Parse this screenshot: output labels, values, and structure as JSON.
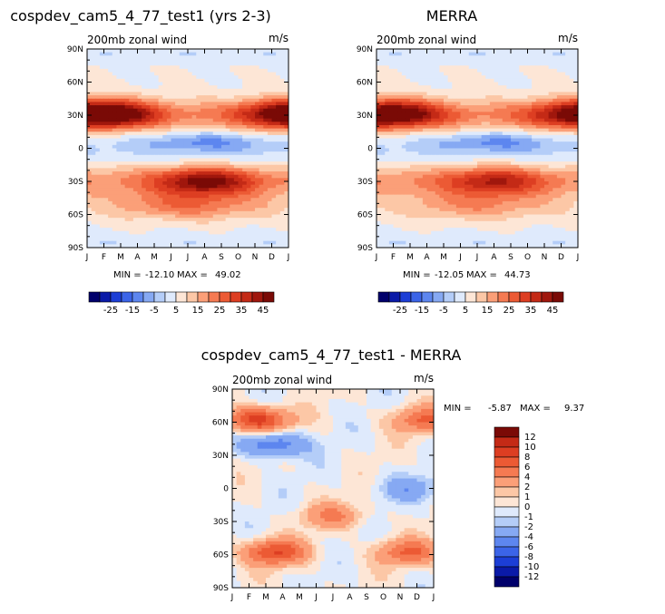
{
  "chart_data": [
    {
      "id": "model",
      "type": "contour",
      "title": "cospdev_cam5_4_77_test1 (yrs 2-3)",
      "left_subtitle": "200mb zonal wind",
      "units": "m/s",
      "x_ticks": [
        "J",
        "F",
        "M",
        "A",
        "M",
        "J",
        "J",
        "A",
        "S",
        "O",
        "N",
        "D",
        "J"
      ],
      "y_ticks": [
        "90N",
        "60N",
        "30N",
        "0",
        "30S",
        "60S",
        "90S"
      ],
      "ylim": [
        -90,
        90
      ],
      "min_label": "MIN =",
      "min": "-12.10",
      "max_label": "MAX =",
      "max": "49.02",
      "colorbar": {
        "orientation": "horizontal",
        "labels": [
          "-25",
          "-15",
          "-5",
          "5",
          "15",
          "25",
          "35",
          "45"
        ],
        "levels": [
          -35,
          -30,
          -25,
          -20,
          -15,
          -10,
          -5,
          0,
          5,
          10,
          15,
          20,
          25,
          30,
          35,
          40,
          45,
          50
        ],
        "colors": [
          "#00006b",
          "#0a1aa8",
          "#1c3ed6",
          "#3b64e8",
          "#5d86ef",
          "#86a9f3",
          "#b4cdf8",
          "#dfeafc",
          "#fde6d6",
          "#fcc7a6",
          "#fb9f78",
          "#f57a52",
          "#ec5a34",
          "#dd3e22",
          "#c42a16",
          "#a0170d",
          "#7a0a06"
        ]
      },
      "features": [
        {
          "kind": "jet",
          "month": 1.5,
          "lat": 31,
          "peak": 49
        },
        {
          "kind": "jet",
          "month": 11.5,
          "lat": 31,
          "peak": 40
        },
        {
          "kind": "jet",
          "month": 7.0,
          "lat": -30,
          "peak": 48
        },
        {
          "kind": "trough",
          "month": 7.0,
          "lat": 6,
          "peak": -12
        },
        {
          "kind": "polar",
          "month": 6.0,
          "lat": -52,
          "peak": 32
        }
      ]
    },
    {
      "id": "obs",
      "type": "contour",
      "title": "MERRA",
      "left_subtitle": "200mb zonal wind",
      "units": "m/s",
      "x_ticks": [
        "J",
        "F",
        "M",
        "A",
        "M",
        "J",
        "J",
        "A",
        "S",
        "O",
        "N",
        "D",
        "J"
      ],
      "y_ticks": [
        "90N",
        "60N",
        "30N",
        "0",
        "30S",
        "60S",
        "90S"
      ],
      "ylim": [
        -90,
        90
      ],
      "min_label": "MIN =",
      "min": "-12.05",
      "max_label": "MAX =",
      "max": "44.73",
      "colorbar": {
        "orientation": "horizontal",
        "labels": [
          "-25",
          "-15",
          "-5",
          "5",
          "15",
          "25",
          "35",
          "45"
        ],
        "levels": [
          -35,
          -30,
          -25,
          -20,
          -15,
          -10,
          -5,
          0,
          5,
          10,
          15,
          20,
          25,
          30,
          35,
          40,
          45,
          50
        ],
        "colors": [
          "#00006b",
          "#0a1aa8",
          "#1c3ed6",
          "#3b64e8",
          "#5d86ef",
          "#86a9f3",
          "#b4cdf8",
          "#dfeafc",
          "#fde6d6",
          "#fcc7a6",
          "#fb9f78",
          "#f57a52",
          "#ec5a34",
          "#dd3e22",
          "#c42a16",
          "#a0170d",
          "#7a0a06"
        ]
      },
      "features": [
        {
          "kind": "jet",
          "month": 1.5,
          "lat": 31,
          "peak": 44
        },
        {
          "kind": "jet",
          "month": 11.5,
          "lat": 31,
          "peak": 38
        },
        {
          "kind": "jet",
          "month": 7.0,
          "lat": -30,
          "peak": 40
        },
        {
          "kind": "trough",
          "month": 7.0,
          "lat": 6,
          "peak": -12
        },
        {
          "kind": "polar",
          "month": 6.0,
          "lat": -52,
          "peak": 28
        }
      ]
    },
    {
      "id": "diff",
      "type": "contour",
      "title": "cospdev_cam5_4_77_test1 - MERRA",
      "left_subtitle": "200mb zonal wind",
      "units": "m/s",
      "x_ticks": [
        "J",
        "F",
        "M",
        "A",
        "M",
        "J",
        "J",
        "A",
        "S",
        "O",
        "N",
        "D",
        "J"
      ],
      "y_ticks": [
        "90N",
        "60N",
        "30N",
        "0",
        "30S",
        "60S",
        "90S"
      ],
      "ylim": [
        -90,
        90
      ],
      "min_label": "MIN =",
      "min": "-5.87",
      "max_label": "MAX =",
      "max": "9.37",
      "colorbar": {
        "orientation": "vertical",
        "labels": [
          "12",
          "10",
          "8",
          "6",
          "4",
          "2",
          "1",
          "0",
          "-1",
          "-2",
          "-4",
          "-6",
          "-8",
          "-10",
          "-12"
        ],
        "levels": [
          -14,
          -12,
          -10,
          -8,
          -6,
          -4,
          -2,
          -1,
          0,
          1,
          2,
          4,
          6,
          8,
          10,
          12,
          14
        ],
        "colors": [
          "#00006b",
          "#0a1aa8",
          "#1c3ed6",
          "#3b64e8",
          "#5d86ef",
          "#86a9f3",
          "#b4cdf8",
          "#dfeafc",
          "#fde6d6",
          "#fcc7a6",
          "#fb9f78",
          "#f57a52",
          "#ec5a34",
          "#dd3e22",
          "#c42a16",
          "#7a0a06"
        ]
      },
      "features": [
        {
          "kind": "blob",
          "month": 1.5,
          "lat": 62,
          "peak": 9
        },
        {
          "kind": "blob",
          "month": 2.5,
          "lat": 40,
          "peak": -6
        },
        {
          "kind": "blob",
          "month": 11.5,
          "lat": 62,
          "peak": 6
        },
        {
          "kind": "blob",
          "month": 2.5,
          "lat": -58,
          "peak": 8
        },
        {
          "kind": "blob",
          "month": 10.5,
          "lat": -58,
          "peak": 6
        },
        {
          "kind": "blob",
          "month": 10.5,
          "lat": 0,
          "peak": -3
        },
        {
          "kind": "blob",
          "month": 6.0,
          "lat": -25,
          "peak": 4
        }
      ]
    }
  ]
}
